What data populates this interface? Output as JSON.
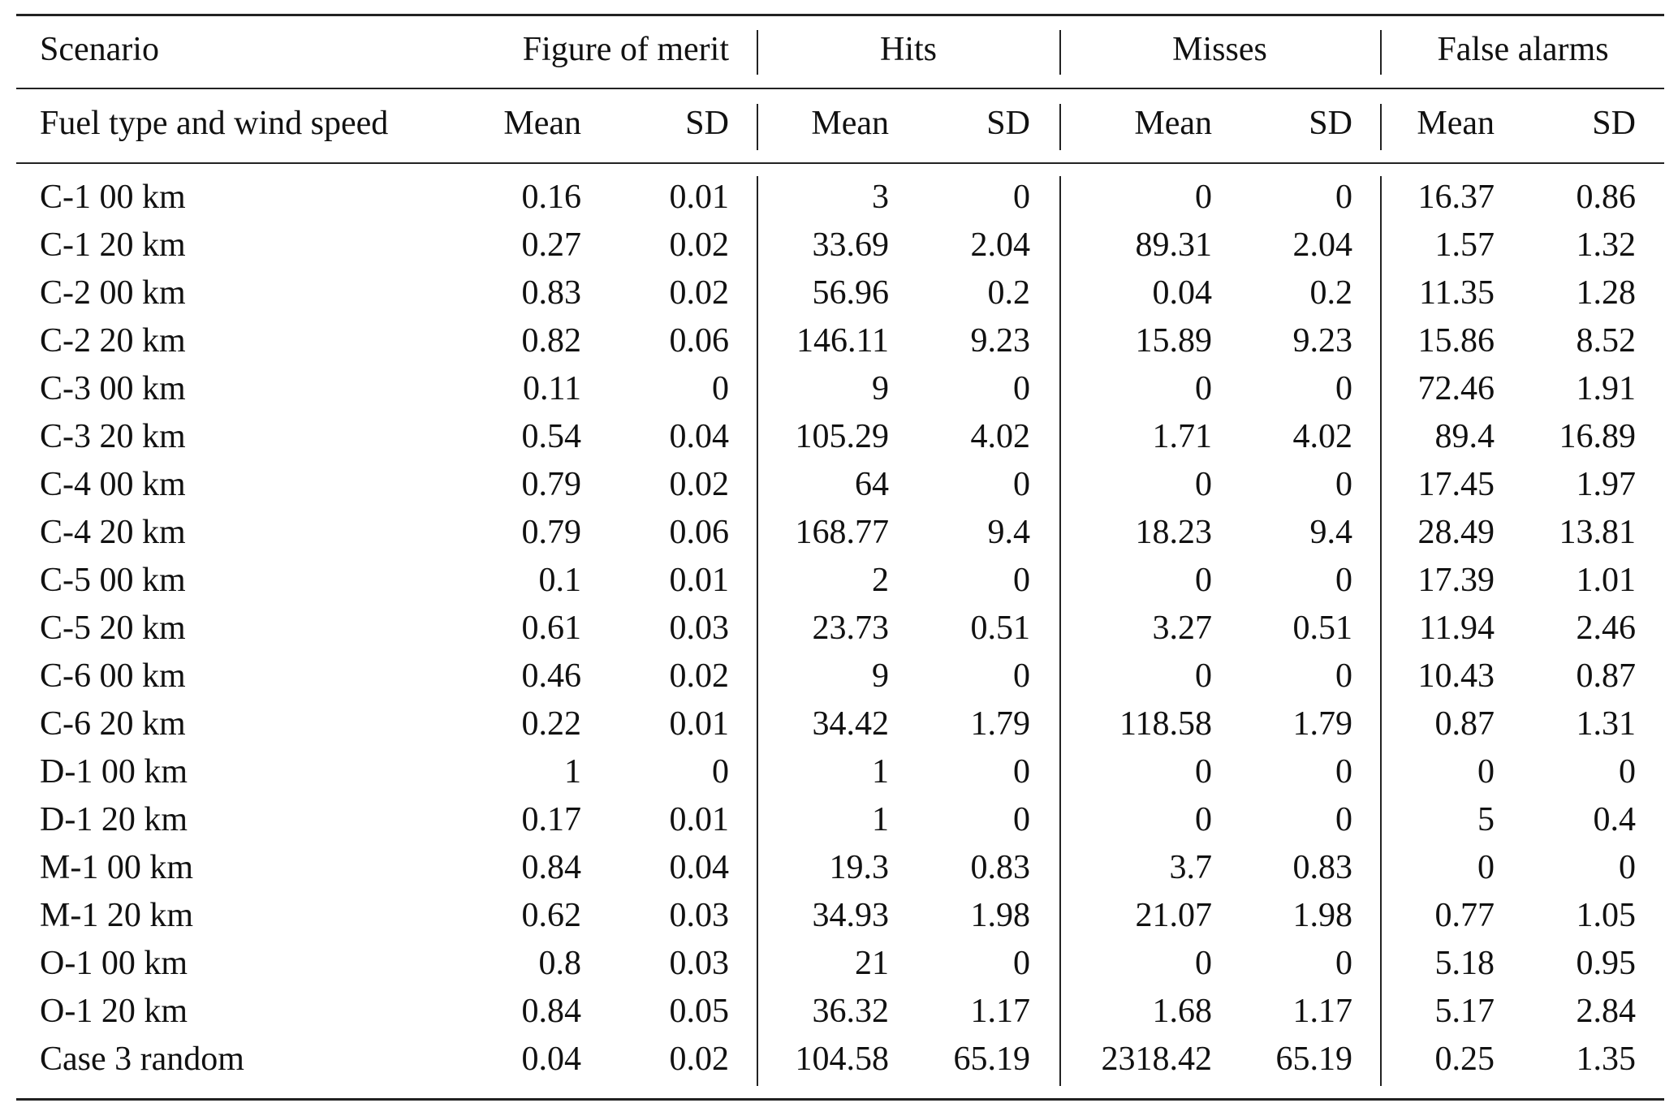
{
  "header": {
    "group_row": {
      "scenario": "Scenario",
      "figure_of_merit": "Figure of merit",
      "hits": "Hits",
      "misses": "Misses",
      "false_alarms": "False alarms"
    },
    "sub_row": {
      "scenario": "Fuel type and wind speed",
      "labels": [
        "Mean",
        "SD",
        "Mean",
        "SD",
        "Mean",
        "SD",
        "Mean",
        "SD"
      ]
    }
  },
  "rows": [
    [
      "C-1 00 km",
      "0.16",
      "0.01",
      "3",
      "0",
      "0",
      "0",
      "16.37",
      "0.86"
    ],
    [
      "C-1 20 km",
      "0.27",
      "0.02",
      "33.69",
      "2.04",
      "89.31",
      "2.04",
      "1.57",
      "1.32"
    ],
    [
      "C-2 00 km",
      "0.83",
      "0.02",
      "56.96",
      "0.2",
      "0.04",
      "0.2",
      "11.35",
      "1.28"
    ],
    [
      "C-2 20 km",
      "0.82",
      "0.06",
      "146.11",
      "9.23",
      "15.89",
      "9.23",
      "15.86",
      "8.52"
    ],
    [
      "C-3 00 km",
      "0.11",
      "0",
      "9",
      "0",
      "0",
      "0",
      "72.46",
      "1.91"
    ],
    [
      "C-3 20 km",
      "0.54",
      "0.04",
      "105.29",
      "4.02",
      "1.71",
      "4.02",
      "89.4",
      "16.89"
    ],
    [
      "C-4 00 km",
      "0.79",
      "0.02",
      "64",
      "0",
      "0",
      "0",
      "17.45",
      "1.97"
    ],
    [
      "C-4 20 km",
      "0.79",
      "0.06",
      "168.77",
      "9.4",
      "18.23",
      "9.4",
      "28.49",
      "13.81"
    ],
    [
      "C-5 00 km",
      "0.1",
      "0.01",
      "2",
      "0",
      "0",
      "0",
      "17.39",
      "1.01"
    ],
    [
      "C-5 20 km",
      "0.61",
      "0.03",
      "23.73",
      "0.51",
      "3.27",
      "0.51",
      "11.94",
      "2.46"
    ],
    [
      "C-6 00 km",
      "0.46",
      "0.02",
      "9",
      "0",
      "0",
      "0",
      "10.43",
      "0.87"
    ],
    [
      "C-6 20 km",
      "0.22",
      "0.01",
      "34.42",
      "1.79",
      "118.58",
      "1.79",
      "0.87",
      "1.31"
    ],
    [
      "D-1 00 km",
      "1",
      "0",
      "1",
      "0",
      "0",
      "0",
      "0",
      "0"
    ],
    [
      "D-1 20 km",
      "0.17",
      "0.01",
      "1",
      "0",
      "0",
      "0",
      "5",
      "0.4"
    ],
    [
      "M-1 00 km",
      "0.84",
      "0.04",
      "19.3",
      "0.83",
      "3.7",
      "0.83",
      "0",
      "0"
    ],
    [
      "M-1 20 km",
      "0.62",
      "0.03",
      "34.93",
      "1.98",
      "21.07",
      "1.98",
      "0.77",
      "1.05"
    ],
    [
      "O-1 00 km",
      "0.8",
      "0.03",
      "21",
      "0",
      "0",
      "0",
      "5.18",
      "0.95"
    ],
    [
      "O-1 20 km",
      "0.84",
      "0.05",
      "36.32",
      "1.17",
      "1.68",
      "1.17",
      "5.17",
      "2.84"
    ],
    [
      "Case 3 random",
      "0.04",
      "0.02",
      "104.58",
      "65.19",
      "2318.42",
      "65.19",
      "0.25",
      "1.35"
    ]
  ]
}
